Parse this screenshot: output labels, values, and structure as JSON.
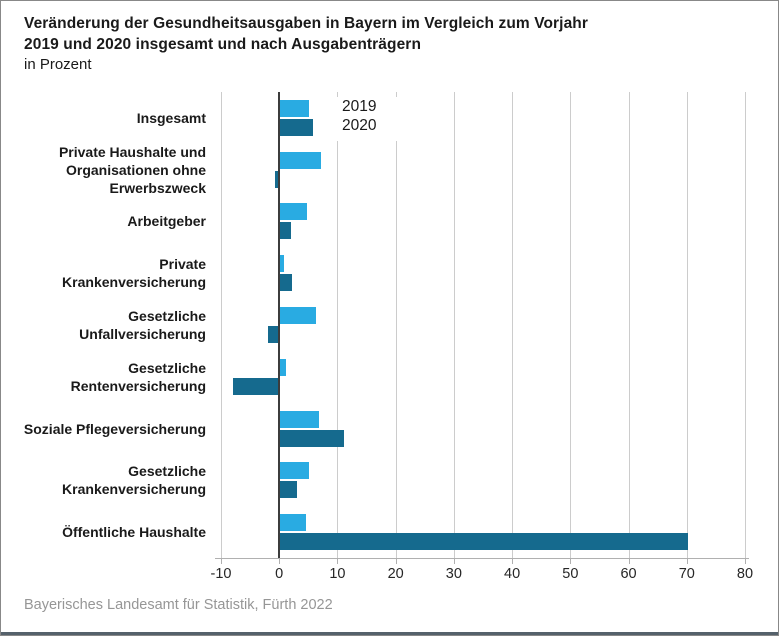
{
  "header": {
    "title_line1": "Veränderung der Gesundheitsausgaben in Bayern im Vergleich zum Vorjahr",
    "title_line2": "2019 und 2020 insgesamt und nach Ausgabenträgern",
    "subtitle": "in Prozent"
  },
  "footer": {
    "source": "Bayerisches Landesamt für Statistik, Fürth 2022"
  },
  "colors": {
    "series_2019": "#29ABE2",
    "series_2020": "#156A8E",
    "gridline": "#CCCCCC",
    "zero_line": "#3C3C3C",
    "axis": "#B0B0B0",
    "text": "#1A1A1A",
    "footer_text": "#969696",
    "bottom_bar": "#55616B"
  },
  "chart_data": {
    "type": "bar",
    "orientation": "horizontal",
    "title": "Veränderung der Gesundheitsausgaben in Bayern im Vergleich zum Vorjahr 2019 und 2020 insgesamt und nach Ausgabenträgern",
    "unit_label": "in Prozent",
    "categories": [
      "Insgesamt",
      "Private Haushalte und Organisationen ohne Erwerbszweck",
      "Arbeitgeber",
      "Private Krankenversicherung",
      "Gesetzliche Unfallversicherung",
      "Gesetzliche Rentenversicherung",
      "Soziale Pflegeversicherung",
      "Gesetzliche Krankenversicherung",
      "Öffentliche Haushalte"
    ],
    "series": [
      {
        "name": "2019",
        "color": "#29ABE2",
        "values": [
          5.2,
          7.1,
          4.8,
          0.8,
          6.4,
          1.2,
          6.8,
          5.1,
          4.6
        ]
      },
      {
        "name": "2020",
        "color": "#156A8E",
        "values": [
          5.8,
          -0.7,
          2.0,
          2.2,
          -1.9,
          -8.0,
          11.1,
          3.1,
          70.2
        ]
      }
    ],
    "xlim": [
      -10,
      80
    ],
    "xticks": [
      -10,
      0,
      10,
      20,
      30,
      40,
      50,
      60,
      70,
      80
    ],
    "grid": true,
    "legend_position": "top-inside"
  }
}
